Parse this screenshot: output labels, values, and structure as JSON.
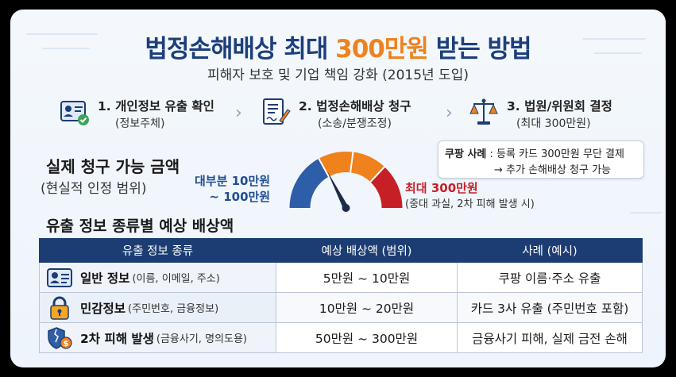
{
  "title": {
    "part1": "법정손해배상 최대 ",
    "highlight": "300만원",
    "part2": " 받는 방법"
  },
  "subtitle": "피해자 보호 및 기업 책임 강화 (2015년 도입)",
  "steps": [
    {
      "title": "1. 개인정보 유출 확인",
      "sub": "(정보주체)",
      "icon": "id-card-check-icon"
    },
    {
      "title": "2. 법정손해배상 청구",
      "sub": "(소송/분쟁조정)",
      "icon": "document-sign-icon"
    },
    {
      "title": "3. 법원/위원회 결정",
      "sub": "(최대 300만원)",
      "icon": "scales-icon"
    }
  ],
  "claim": {
    "title": "실제 청구 가능 금액",
    "sub": "(현실적 인정 범위)"
  },
  "gauge": {
    "typical_line1": "대부분 10만원",
    "typical_line2": "~ 100만원",
    "max_label": "최대 300만원",
    "max_sub": "(중대 과실, 2차 피해 발생 시)",
    "needle_level": 0.35,
    "colors": {
      "low": "#2f5ea8",
      "mid": "#f0821e",
      "high": "#c62026"
    }
  },
  "case_box": {
    "label": "쿠팡 사례",
    "line1": " : 등록 카드 300만원 무단 결제",
    "line2": "→ 추가 손해배상 청구 가능"
  },
  "table": {
    "title": "유출 정보 종류별 예상 배상액",
    "headers": [
      "유출 정보 종류",
      "예상 배상액 (범위)",
      "사례 (예시)"
    ],
    "rows": [
      {
        "icon": "id-card-icon",
        "name": "일반 정보",
        "desc": "(이름, 이메일, 주소)",
        "range": "5만원 ~ 10만원",
        "example": "쿠팡 이름·주소 유출"
      },
      {
        "icon": "padlock-icon",
        "name": "민감정보",
        "desc": "(주민번호, 금융정보)",
        "range": "10만원 ~ 20만원",
        "example": "카드 3사 유출 (주민번호 포함)"
      },
      {
        "icon": "broken-shield-money-icon",
        "name": "2차 피해 발생",
        "desc": "(금융사기, 명의도용)",
        "range": "50만원 ~ 300만원",
        "example": "금융사기 피해, 실제 금전 손해"
      }
    ]
  },
  "colors": {
    "navy": "#1c3d73",
    "accent": "#f0821e",
    "red": "#c62026"
  }
}
